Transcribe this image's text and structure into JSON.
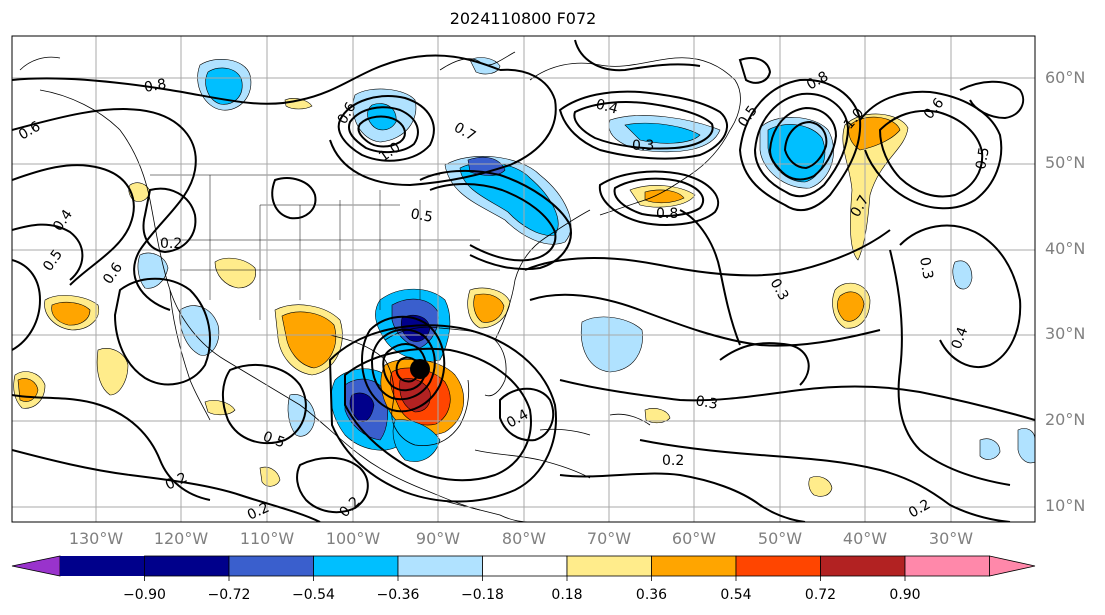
{
  "title": "2024110800 F072",
  "latitude_labels": [
    {
      "text": "60°N",
      "lat": 60
    },
    {
      "text": "50°N",
      "lat": 50
    },
    {
      "text": "40°N",
      "lat": 40
    },
    {
      "text": "30°N",
      "lat": 30
    },
    {
      "text": "20°N",
      "lat": 20
    },
    {
      "text": "10°N",
      "lat": 10
    }
  ],
  "longitude_labels": [
    {
      "text": "130°W",
      "lon": -130
    },
    {
      "text": "120°W",
      "lon": -120
    },
    {
      "text": "110°W",
      "lon": -110
    },
    {
      "text": "100°W",
      "lon": -100
    },
    {
      "text": "90°W",
      "lon": -90
    },
    {
      "text": "80°W",
      "lon": -80
    },
    {
      "text": "70°W",
      "lon": -70
    },
    {
      "text": "60°W",
      "lon": -60
    },
    {
      "text": "50°W",
      "lon": -50
    },
    {
      "text": "40°W",
      "lon": -40
    },
    {
      "text": "30°W",
      "lon": -30
    }
  ],
  "colorbar": {
    "ticks": [
      "−0.90",
      "−0.72",
      "−0.54",
      "−0.36",
      "−0.18",
      "0.18",
      "0.36",
      "0.54",
      "0.72",
      "0.90"
    ],
    "colors": [
      "#9933cc",
      "#00008b",
      "#3a5fcd",
      "#00bfff",
      "#b0e2ff",
      "#ffffff",
      "#ffec8b",
      "#ffa500",
      "#ff4500",
      "#b22222",
      "#ff88aa"
    ]
  },
  "contour_labels": [
    "0.8",
    "0.6",
    "0.4",
    "0.5",
    "0.6",
    "0.2",
    "0.6",
    "1.0",
    "0.7",
    "0.5",
    "0.4",
    "0.3",
    "0.8",
    "0.8",
    "1.0",
    "0.7",
    "0.5",
    "0.6",
    "0.5",
    "0.3",
    "0.3",
    "0.4",
    "0.3",
    "0.5",
    "0.2",
    "0.2",
    "0.2",
    "0.4",
    "0.2",
    "0.2"
  ]
}
